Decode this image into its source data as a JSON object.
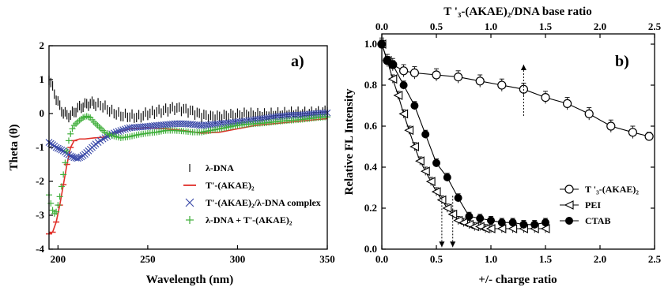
{
  "chart_data": [
    {
      "type": "line",
      "panel_label": "a)",
      "xlabel": "Wavelength (nm)",
      "ylabel": "Theta (θ)",
      "xlim": [
        195,
        350
      ],
      "ylim": [
        -4,
        2
      ],
      "x_ticks": [
        200,
        250,
        300,
        350
      ],
      "y_ticks": [
        2,
        1,
        0,
        -1,
        -2,
        -3,
        -4
      ],
      "legend_position": "bottom-right",
      "series": [
        {
          "name": "λ-DNA",
          "marker": "vline",
          "color": "#111111",
          "x": [
            195,
            197,
            199,
            201,
            203,
            205,
            207,
            209,
            212,
            215,
            218,
            221,
            225,
            230,
            235,
            240,
            245,
            250,
            255,
            260,
            265,
            270,
            275,
            280,
            285,
            290,
            295,
            300,
            305,
            310,
            315,
            320,
            325,
            330,
            335,
            340,
            345,
            350
          ],
          "y": [
            1.05,
            0.75,
            0.45,
            0.2,
            0.02,
            -0.05,
            -0.05,
            0.05,
            0.18,
            0.25,
            0.3,
            0.28,
            0.22,
            0.05,
            -0.05,
            -0.08,
            -0.1,
            0.0,
            0.05,
            0.1,
            0.16,
            0.12,
            0.05,
            -0.05,
            -0.1,
            -0.1,
            -0.06,
            -0.05,
            -0.02,
            -0.04,
            -0.05,
            -0.03,
            -0.02,
            0.0,
            0.0,
            0.0,
            0.02,
            0.05
          ]
        },
        {
          "name": "T'-(AKAE)₂",
          "marker": "line",
          "color": "#e0302a",
          "x": [
            195,
            197,
            199,
            201,
            203,
            205,
            207,
            209,
            212,
            215,
            220,
            225,
            230,
            240,
            250,
            260,
            270,
            280,
            290,
            300,
            310,
            320,
            330,
            340,
            350
          ],
          "y": [
            -3.55,
            -3.5,
            -3.2,
            -2.7,
            -2.1,
            -1.5,
            -1.0,
            -0.8,
            -0.75,
            -0.75,
            -0.72,
            -0.7,
            -0.6,
            -0.45,
            -0.42,
            -0.45,
            -0.5,
            -0.58,
            -0.55,
            -0.45,
            -0.35,
            -0.3,
            -0.25,
            -0.2,
            -0.15
          ]
        },
        {
          "name": "T'-(AKAE)₂/λ-DNA complex",
          "marker": "x",
          "color": "#3a49a8",
          "x": [
            195,
            197,
            199,
            201,
            203,
            205,
            207,
            209,
            211,
            213,
            215,
            218,
            221,
            225,
            230,
            235,
            240,
            245,
            250,
            255,
            260,
            265,
            270,
            275,
            280,
            285,
            290,
            295,
            300,
            305,
            310,
            315,
            320,
            325,
            330,
            335,
            340,
            345,
            350
          ],
          "y": [
            -0.85,
            -0.92,
            -1.0,
            -1.05,
            -1.1,
            -1.18,
            -1.25,
            -1.3,
            -1.32,
            -1.28,
            -1.2,
            -1.05,
            -0.9,
            -0.75,
            -0.6,
            -0.5,
            -0.42,
            -0.4,
            -0.38,
            -0.35,
            -0.33,
            -0.3,
            -0.3,
            -0.32,
            -0.35,
            -0.33,
            -0.3,
            -0.28,
            -0.25,
            -0.22,
            -0.18,
            -0.15,
            -0.1,
            -0.08,
            -0.05,
            -0.05,
            -0.02,
            0.0,
            0.02
          ]
        },
        {
          "name": "λ-DNA + T'-(AKAE)₂",
          "marker": "plus",
          "color": "#3fae3a",
          "x": [
            195,
            196,
            197,
            198,
            199,
            200,
            201,
            202,
            203,
            204,
            205,
            206,
            207,
            208,
            209,
            210,
            212,
            214,
            216,
            218,
            220,
            223,
            226,
            230,
            235,
            240,
            245,
            250,
            255,
            260,
            265,
            270,
            275,
            280,
            285,
            290,
            295,
            300,
            305,
            310,
            315,
            320,
            325,
            330,
            335,
            340,
            345,
            350
          ],
          "y": [
            -2.4,
            -2.65,
            -2.85,
            -2.95,
            -2.9,
            -2.7,
            -2.45,
            -2.15,
            -1.8,
            -1.45,
            -1.1,
            -0.8,
            -0.6,
            -0.45,
            -0.35,
            -0.3,
            -0.2,
            -0.12,
            -0.08,
            -0.12,
            -0.25,
            -0.4,
            -0.55,
            -0.65,
            -0.72,
            -0.68,
            -0.62,
            -0.58,
            -0.55,
            -0.5,
            -0.5,
            -0.52,
            -0.55,
            -0.55,
            -0.5,
            -0.45,
            -0.4,
            -0.35,
            -0.32,
            -0.3,
            -0.28,
            -0.25,
            -0.22,
            -0.2,
            -0.18,
            -0.15,
            -0.12,
            -0.1
          ]
        }
      ]
    },
    {
      "type": "line",
      "panel_label": "b)",
      "xlabel": "+/- charge ratio",
      "ylabel": "Relative FL Intensity",
      "x2label": "T '₃-(AKAE)₂/DNA base ratio",
      "xlim": [
        0,
        2.5
      ],
      "ylim": [
        0,
        1.05
      ],
      "x_ticks": [
        0.0,
        0.5,
        1.0,
        1.5,
        2.0,
        2.5
      ],
      "x2_ticks": [
        0.0,
        0.5,
        1.0,
        1.5,
        2.0,
        2.5
      ],
      "y_ticks": [
        0.0,
        0.2,
        0.4,
        0.6,
        0.8,
        1.0
      ],
      "legend_position": "bottom-right",
      "series": [
        {
          "name": "T '₃-(AKAE)₂",
          "marker": "open-circle",
          "axis": "top",
          "x": [
            0.0,
            0.05,
            0.1,
            0.2,
            0.3,
            0.5,
            0.7,
            0.9,
            1.1,
            1.3,
            1.5,
            1.7,
            1.9,
            2.1,
            2.3,
            2.45
          ],
          "y": [
            1.0,
            0.92,
            0.9,
            0.87,
            0.86,
            0.85,
            0.84,
            0.82,
            0.8,
            0.78,
            0.74,
            0.71,
            0.66,
            0.6,
            0.57,
            0.55
          ],
          "err": [
            0.03,
            0.03,
            0.03,
            0.03,
            0.03,
            0.03,
            0.03,
            0.03,
            0.03,
            0.03,
            0.03,
            0.03,
            0.03,
            0.03,
            0.03,
            0.02
          ]
        },
        {
          "name": "PEI",
          "marker": "open-triangle-left",
          "axis": "bottom",
          "x": [
            0.0,
            0.05,
            0.1,
            0.15,
            0.2,
            0.25,
            0.3,
            0.35,
            0.4,
            0.45,
            0.5,
            0.55,
            0.6,
            0.65,
            0.7,
            0.75,
            0.8,
            0.85,
            0.9,
            0.95,
            1.0,
            1.1,
            1.2,
            1.3,
            1.4,
            1.5
          ],
          "y": [
            1.0,
            0.92,
            0.83,
            0.75,
            0.66,
            0.58,
            0.5,
            0.43,
            0.38,
            0.33,
            0.28,
            0.24,
            0.2,
            0.17,
            0.14,
            0.13,
            0.12,
            0.11,
            0.11,
            0.1,
            0.1,
            0.1,
            0.1,
            0.1,
            0.1,
            0.1
          ],
          "err": [
            0.02,
            0.02,
            0.02,
            0.02,
            0.02,
            0.02,
            0.02,
            0.02,
            0.02,
            0.02,
            0.02,
            0.02,
            0.02,
            0.02,
            0.02,
            0.02,
            0.02,
            0.02,
            0.02,
            0.02,
            0.02,
            0.02,
            0.02,
            0.02,
            0.02,
            0.02
          ]
        },
        {
          "name": "CTAB",
          "marker": "filled-circle",
          "axis": "bottom",
          "x": [
            0.0,
            0.05,
            0.1,
            0.2,
            0.3,
            0.4,
            0.5,
            0.6,
            0.7,
            0.8,
            0.9,
            1.0,
            1.1,
            1.2,
            1.3,
            1.4,
            1.5
          ],
          "y": [
            1.0,
            0.92,
            0.9,
            0.8,
            0.7,
            0.56,
            0.42,
            0.35,
            0.25,
            0.16,
            0.15,
            0.14,
            0.13,
            0.13,
            0.12,
            0.12,
            0.13
          ],
          "err": [
            0.02,
            0.02,
            0.02,
            0.02,
            0.02,
            0.02,
            0.02,
            0.02,
            0.02,
            0.02,
            0.02,
            0.02,
            0.02,
            0.02,
            0.02,
            0.02,
            0.02
          ]
        }
      ],
      "annotations": [
        {
          "type": "arrow",
          "direction": "down",
          "x": 0.55,
          "y_from": 0.26,
          "y_to": 0.01
        },
        {
          "type": "arrow",
          "direction": "down",
          "x": 0.65,
          "y_from": 0.26,
          "y_to": 0.01
        },
        {
          "type": "arrow",
          "direction": "up",
          "x": 1.3,
          "y_from": 0.65,
          "y_to": 0.9,
          "axis": "top"
        }
      ]
    }
  ]
}
